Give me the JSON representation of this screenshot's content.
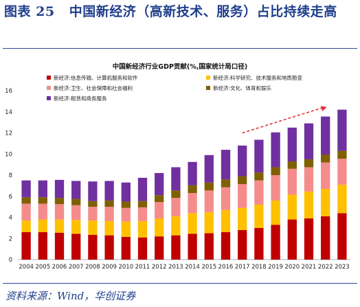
{
  "figure": {
    "label": "图表 25",
    "title": "中国新经济（高新技术、服务）占比持续走高",
    "source": "资料来源：Wind，华创证券"
  },
  "colors": {
    "info": "#C00000",
    "sci": "#FFC000",
    "health": "#F58C8C",
    "culture": "#7F6000",
    "lease": "#7030A0",
    "accent_text": "#1F3E8C",
    "arrow": "#E03030"
  },
  "chart_data": {
    "type": "bar",
    "stacked": true,
    "title": "中国新经济行业GDP贡献(%,国家统计局口径)",
    "ylim": [
      0,
      16
    ],
    "yticks": [
      0,
      2,
      4,
      6,
      8,
      10,
      12,
      14,
      16
    ],
    "categories": [
      "2004",
      "2005",
      "2006",
      "2007",
      "2008",
      "2009",
      "2010",
      "2011",
      "2012",
      "2013",
      "2014",
      "2015",
      "2016",
      "2017",
      "2018",
      "2019",
      "2020",
      "2021",
      "2022",
      "2023"
    ],
    "legend_position": "top",
    "series": [
      {
        "name": "新经济:信息传输、计算机服务和软件",
        "color_key": "info",
        "values": [
          2.6,
          2.6,
          2.55,
          2.45,
          2.35,
          2.3,
          2.15,
          2.1,
          2.2,
          2.3,
          2.45,
          2.5,
          2.6,
          2.8,
          3.0,
          3.3,
          3.8,
          3.9,
          4.1,
          4.4
        ]
      },
      {
        "name": "新经济:科学研究、技术服务和地质勘查",
        "color_key": "sci",
        "values": [
          1.1,
          1.2,
          1.25,
          1.3,
          1.35,
          1.35,
          1.45,
          1.55,
          1.7,
          1.8,
          1.95,
          2.0,
          2.1,
          2.1,
          2.2,
          2.3,
          2.35,
          2.55,
          2.6,
          2.7
        ]
      },
      {
        "name": "新经济:卫生、社会保障和社会福利",
        "color_key": "health",
        "values": [
          1.6,
          1.5,
          1.45,
          1.4,
          1.3,
          1.35,
          1.3,
          1.3,
          1.55,
          1.75,
          1.9,
          2.05,
          2.15,
          2.25,
          2.3,
          2.4,
          2.45,
          2.3,
          2.5,
          2.45
        ]
      },
      {
        "name": "新经济:文化、体育和娱乐",
        "color_key": "culture",
        "values": [
          0.6,
          0.6,
          0.6,
          0.6,
          0.55,
          0.6,
          0.6,
          0.6,
          0.65,
          0.7,
          0.75,
          0.75,
          0.75,
          0.75,
          0.75,
          0.75,
          0.7,
          0.75,
          0.75,
          0.75
        ]
      },
      {
        "name": "新经济:租赁和商务服务",
        "color_key": "lease",
        "values": [
          1.6,
          1.6,
          1.7,
          1.7,
          1.85,
          1.85,
          1.8,
          2.2,
          2.1,
          2.2,
          2.2,
          2.6,
          2.8,
          2.9,
          3.1,
          3.3,
          3.2,
          3.4,
          3.6,
          3.9
        ]
      }
    ],
    "annotation": "upward trend arrow from 2017 to 2022"
  }
}
